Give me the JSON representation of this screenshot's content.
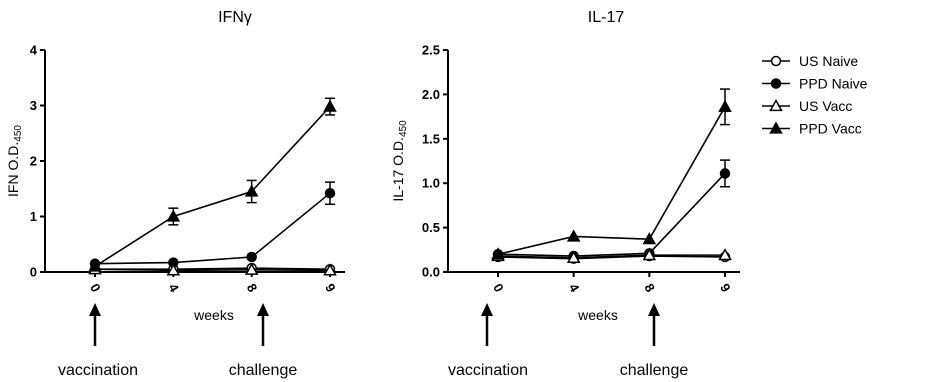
{
  "chart_data": [
    {
      "type": "line",
      "title": "IFNγ",
      "ylabel_main": "IFN",
      "ylabel_od": "O.D.",
      "ylabel_sub": "450",
      "xlabel": "weeks",
      "x": [
        "0",
        "4",
        "8",
        "9"
      ],
      "yticks": [
        "0",
        "1",
        "2",
        "3",
        "4"
      ],
      "ylim": [
        0,
        4
      ],
      "grid": false,
      "annotations": [
        "vaccination",
        "challenge"
      ],
      "series": [
        {
          "name": "US Naive",
          "marker": "circle-open",
          "values": [
            0.05,
            0.05,
            0.07,
            0.05
          ],
          "err": [
            0.02,
            0.02,
            0.02,
            0.02
          ]
        },
        {
          "name": "PPD Naive",
          "marker": "circle-filled",
          "values": [
            0.15,
            0.17,
            0.27,
            1.42
          ],
          "err": [
            0.02,
            0.02,
            0.03,
            0.2
          ]
        },
        {
          "name": "US Vacc",
          "marker": "triangle-open",
          "values": [
            0.05,
            0.03,
            0.04,
            0.03
          ],
          "err": [
            0.02,
            0.02,
            0.02,
            0.02
          ]
        },
        {
          "name": "PPD Vacc",
          "marker": "triangle-filled",
          "values": [
            0.1,
            1.0,
            1.45,
            2.98
          ],
          "err": [
            0.03,
            0.15,
            0.2,
            0.15
          ]
        }
      ]
    },
    {
      "type": "line",
      "title": "IL-17",
      "ylabel_main": "IL-17",
      "ylabel_od": "O.D.",
      "ylabel_sub": "450",
      "xlabel": "weeks",
      "x": [
        "0",
        "4",
        "8",
        "9"
      ],
      "yticks": [
        "0.0",
        "0.5",
        "1.0",
        "1.5",
        "2.0",
        "2.5"
      ],
      "ylim": [
        0,
        2.5
      ],
      "grid": false,
      "annotations": [
        "vaccination",
        "challenge"
      ],
      "series": [
        {
          "name": "US Naive",
          "marker": "circle-open",
          "values": [
            0.17,
            0.15,
            0.18,
            0.17
          ],
          "err": [
            0.02,
            0.02,
            0.02,
            0.02
          ]
        },
        {
          "name": "PPD Naive",
          "marker": "circle-filled",
          "values": [
            0.2,
            0.18,
            0.21,
            1.11
          ],
          "err": [
            0.02,
            0.02,
            0.02,
            0.15
          ]
        },
        {
          "name": "US Vacc",
          "marker": "triangle-open",
          "values": [
            0.18,
            0.16,
            0.19,
            0.19
          ],
          "err": [
            0.02,
            0.02,
            0.02,
            0.02
          ]
        },
        {
          "name": "PPD Vacc",
          "marker": "triangle-filled",
          "values": [
            0.2,
            0.4,
            0.37,
            1.86
          ],
          "err": [
            0.02,
            0.02,
            0.02,
            0.2
          ]
        }
      ]
    }
  ],
  "legend": {
    "placement": "right",
    "items": [
      {
        "name": "US Naive",
        "marker": "circle-open"
      },
      {
        "name": "PPD Naive",
        "marker": "circle-filled"
      },
      {
        "name": "US Vacc",
        "marker": "triangle-open"
      },
      {
        "name": "PPD Vacc",
        "marker": "triangle-filled"
      }
    ]
  }
}
